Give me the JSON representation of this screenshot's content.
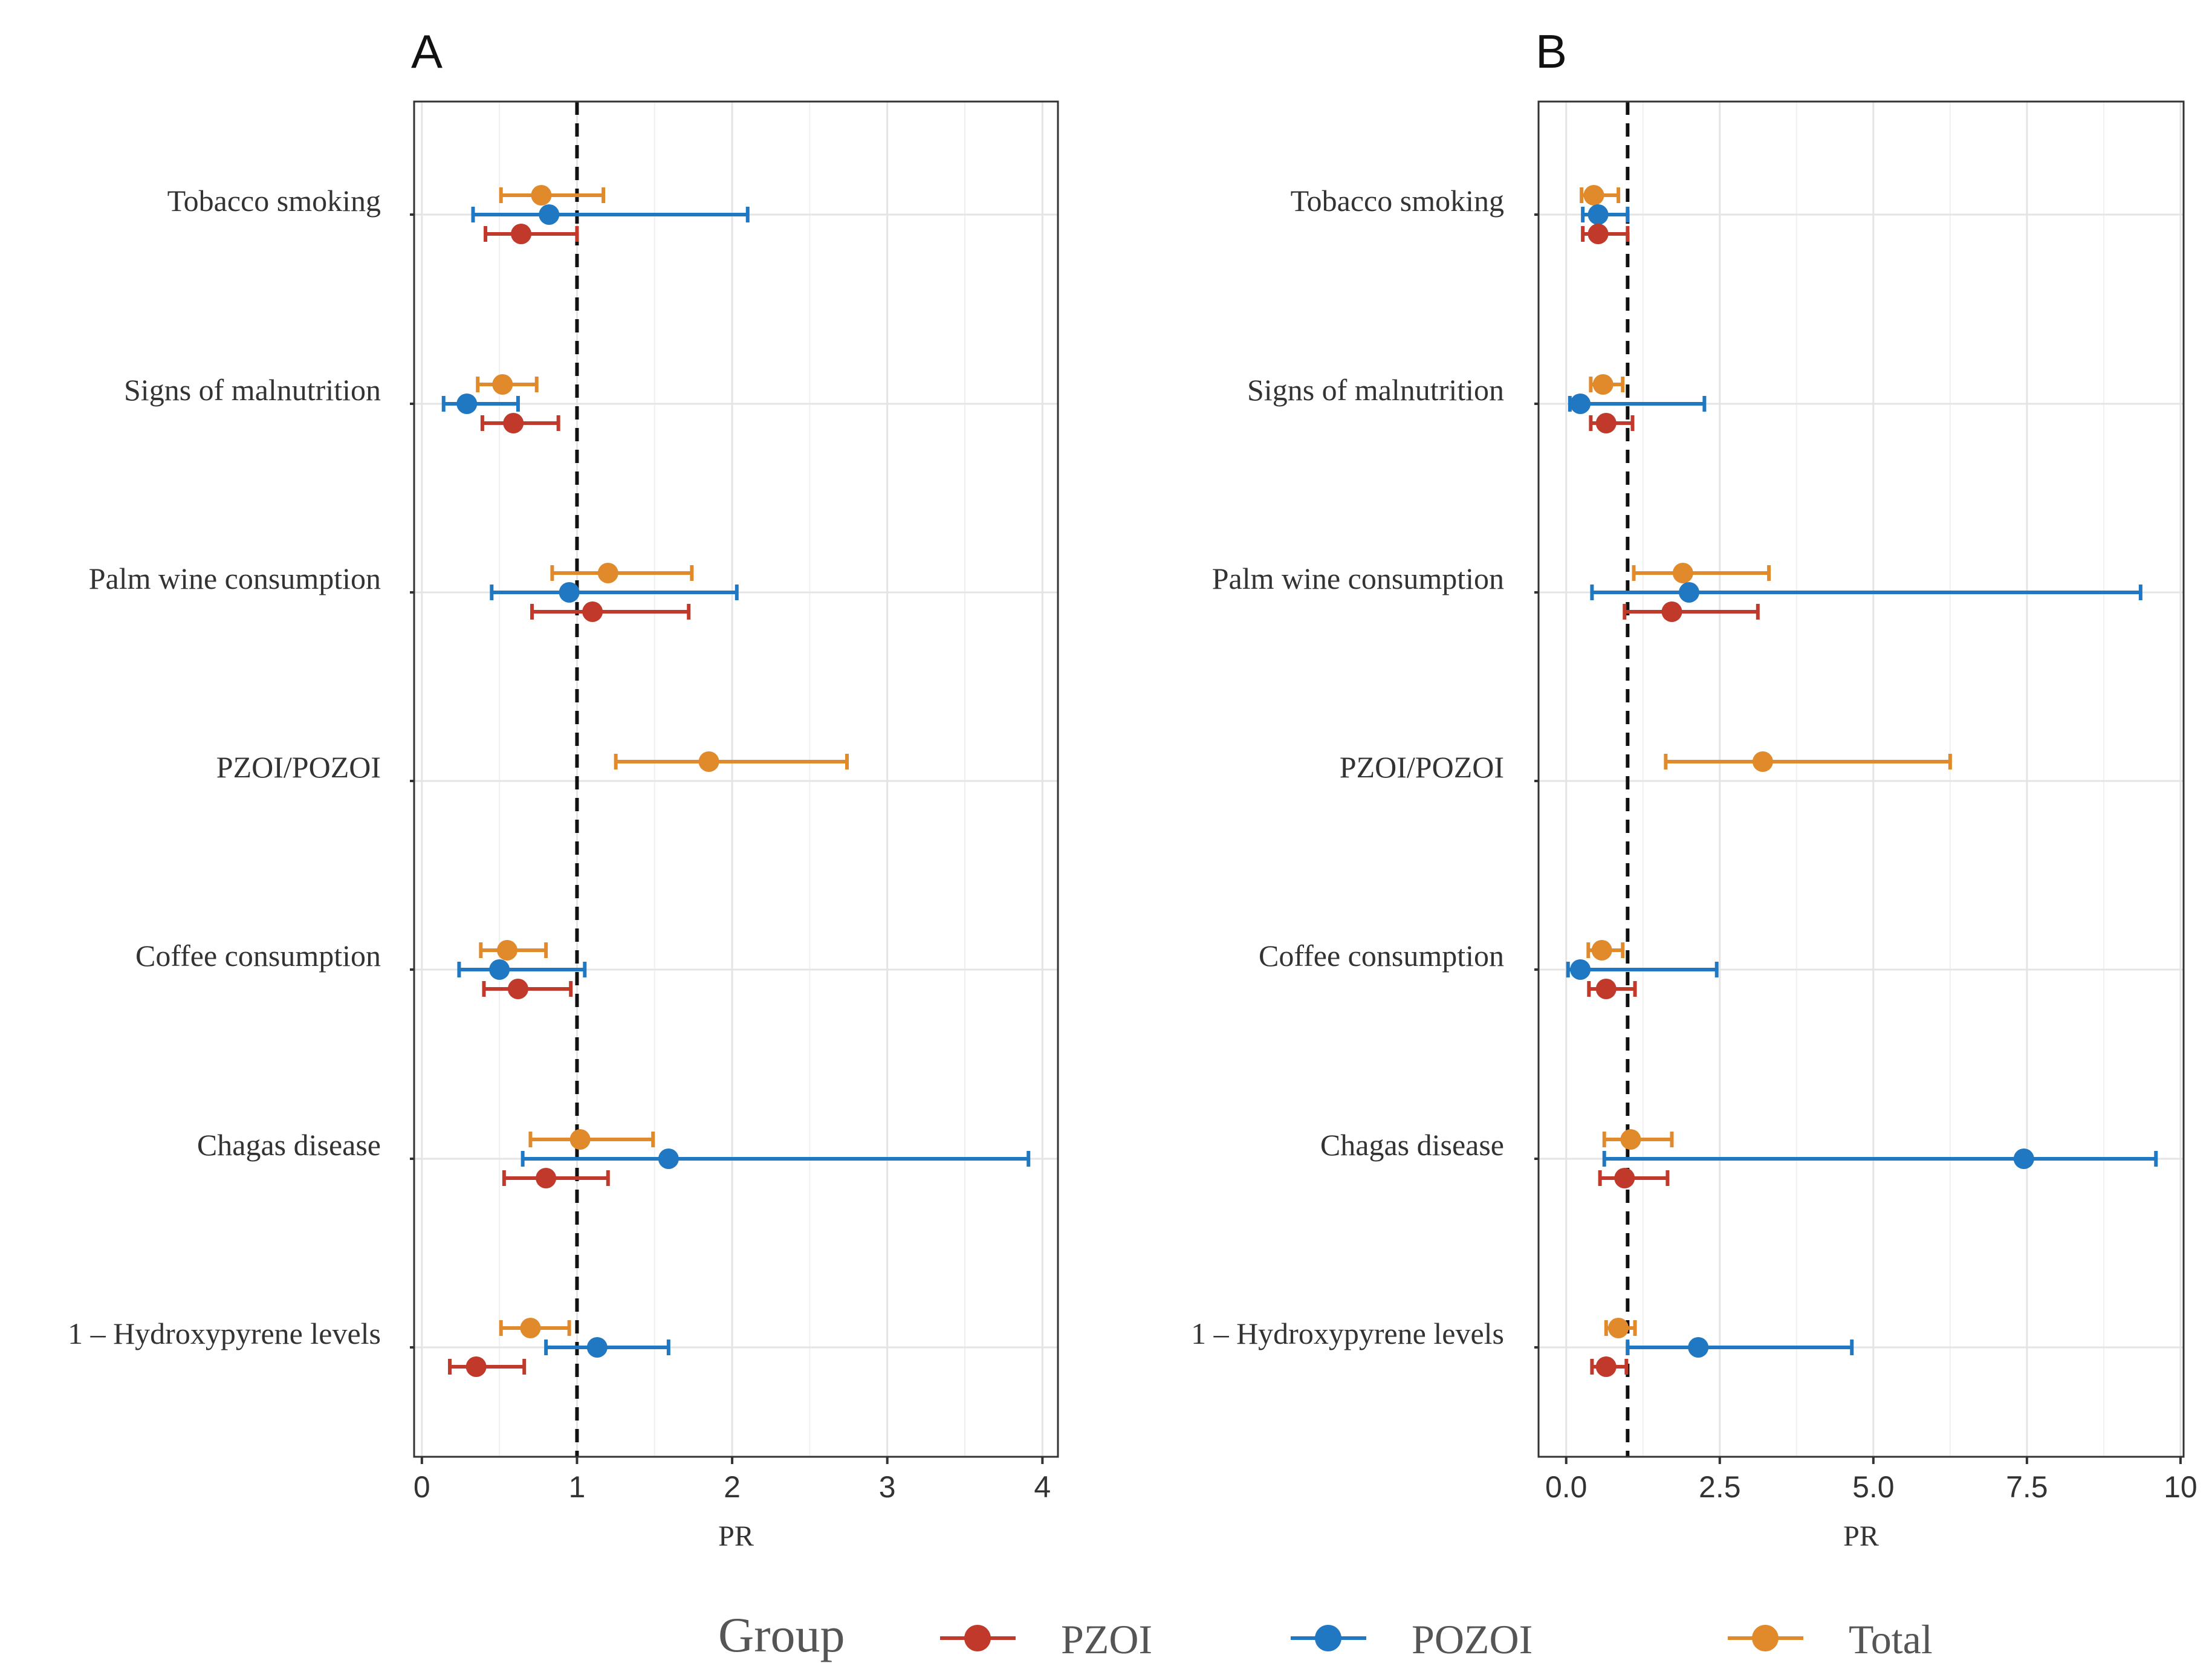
{
  "legend": {
    "title": "Group",
    "items": [
      {
        "name": "PZOI",
        "color": "#c0392b"
      },
      {
        "name": "POZOI",
        "color": "#1f78c1"
      },
      {
        "name": "Total",
        "color": "#e08a2c"
      }
    ]
  },
  "chart_data": [
    {
      "type": "forest",
      "panel": "A",
      "xlabel": "PR",
      "xlim": [
        -0.05,
        4.1
      ],
      "xticks": [
        0,
        1,
        2,
        3,
        4
      ],
      "tick_labels": [
        "0",
        "1",
        "2",
        "3",
        "4"
      ],
      "reference_line": 1,
      "categories": [
        "Tobacco smoking",
        "Signs of malnutrition",
        "Palm wine consumption",
        "PZOI/POZOI",
        "Coffee consumption",
        "Chagas disease",
        "1 – Hydroxypyrene levels"
      ],
      "series": [
        {
          "name": "Total",
          "estimates": [
            {
              "category": "Tobacco smoking",
              "pr": 0.77,
              "lo": 0.51,
              "hi": 1.17
            },
            {
              "category": "Signs of malnutrition",
              "pr": 0.52,
              "lo": 0.36,
              "hi": 0.74
            },
            {
              "category": "Palm wine consumption",
              "pr": 1.2,
              "lo": 0.84,
              "hi": 1.74
            },
            {
              "category": "PZOI/POZOI",
              "pr": 1.85,
              "lo": 1.25,
              "hi": 2.74
            },
            {
              "category": "Coffee consumption",
              "pr": 0.55,
              "lo": 0.38,
              "hi": 0.8
            },
            {
              "category": "Chagas disease",
              "pr": 1.02,
              "lo": 0.7,
              "hi": 1.49
            },
            {
              "category": "1 – Hydroxypyrene levels",
              "pr": 0.7,
              "lo": 0.51,
              "hi": 0.95
            }
          ]
        },
        {
          "name": "POZOI",
          "estimates": [
            {
              "category": "Tobacco smoking",
              "pr": 0.82,
              "lo": 0.33,
              "hi": 2.1
            },
            {
              "category": "Signs of malnutrition",
              "pr": 0.29,
              "lo": 0.14,
              "hi": 0.62
            },
            {
              "category": "Palm wine consumption",
              "pr": 0.95,
              "lo": 0.45,
              "hi": 2.03
            },
            {
              "category": "Coffee consumption",
              "pr": 0.5,
              "lo": 0.24,
              "hi": 1.05
            },
            {
              "category": "Chagas disease",
              "pr": 1.59,
              "lo": 0.65,
              "hi": 3.91
            },
            {
              "category": "1 – Hydroxypyrene levels",
              "pr": 1.13,
              "lo": 0.8,
              "hi": 1.59
            }
          ]
        },
        {
          "name": "PZOI",
          "estimates": [
            {
              "category": "Tobacco smoking",
              "pr": 0.64,
              "lo": 0.41,
              "hi": 1.0
            },
            {
              "category": "Signs of malnutrition",
              "pr": 0.59,
              "lo": 0.39,
              "hi": 0.88
            },
            {
              "category": "Palm wine consumption",
              "pr": 1.1,
              "lo": 0.71,
              "hi": 1.72
            },
            {
              "category": "Coffee consumption",
              "pr": 0.62,
              "lo": 0.4,
              "hi": 0.96
            },
            {
              "category": "Chagas disease",
              "pr": 0.8,
              "lo": 0.53,
              "hi": 1.2
            },
            {
              "category": "1 – Hydroxypyrene levels",
              "pr": 0.35,
              "lo": 0.18,
              "hi": 0.66
            }
          ]
        }
      ]
    },
    {
      "type": "forest",
      "panel": "B",
      "xlabel": "PR",
      "xlim": [
        -0.45,
        10.05
      ],
      "xticks": [
        0,
        2.5,
        5,
        7.5,
        10
      ],
      "tick_labels": [
        "0.0",
        "2.5",
        "5.0",
        "7.5",
        "10"
      ],
      "reference_line": 1,
      "categories": [
        "Tobacco smoking",
        "Signs of malnutrition",
        "Palm wine consumption",
        "PZOI/POZOI",
        "Coffee consumption",
        "Chagas disease",
        "1 – Hydroxypyrene levels"
      ],
      "series": [
        {
          "name": "Total",
          "estimates": [
            {
              "category": "Tobacco smoking",
              "pr": 0.45,
              "lo": 0.25,
              "hi": 0.85
            },
            {
              "category": "Signs of malnutrition",
              "pr": 0.6,
              "lo": 0.4,
              "hi": 0.92
            },
            {
              "category": "Palm wine consumption",
              "pr": 1.9,
              "lo": 1.1,
              "hi": 3.3
            },
            {
              "category": "PZOI/POZOI",
              "pr": 3.2,
              "lo": 1.62,
              "hi": 6.25
            },
            {
              "category": "Coffee consumption",
              "pr": 0.58,
              "lo": 0.36,
              "hi": 0.92
            },
            {
              "category": "Chagas disease",
              "pr": 1.05,
              "lo": 0.62,
              "hi": 1.72
            },
            {
              "category": "1 – Hydroxypyrene levels",
              "pr": 0.85,
              "lo": 0.65,
              "hi": 1.12
            }
          ]
        },
        {
          "name": "POZOI",
          "estimates": [
            {
              "category": "Tobacco smoking",
              "pr": 0.52,
              "lo": 0.27,
              "hi": 1.0
            },
            {
              "category": "Signs of malnutrition",
              "pr": 0.23,
              "lo": 0.06,
              "hi": 2.25
            },
            {
              "category": "Palm wine consumption",
              "pr": 2.0,
              "lo": 0.42,
              "hi": 9.35
            },
            {
              "category": "Coffee consumption",
              "pr": 0.23,
              "lo": 0.03,
              "hi": 2.45
            },
            {
              "category": "Chagas disease",
              "pr": 7.45,
              "lo": 0.62,
              "hi": 9.6
            },
            {
              "category": "1 – Hydroxypyrene levels",
              "pr": 2.15,
              "lo": 1.0,
              "hi": 4.65
            }
          ]
        },
        {
          "name": "PZOI",
          "estimates": [
            {
              "category": "Tobacco smoking",
              "pr": 0.52,
              "lo": 0.27,
              "hi": 1.0
            },
            {
              "category": "Signs of malnutrition",
              "pr": 0.65,
              "lo": 0.4,
              "hi": 1.08
            },
            {
              "category": "Palm wine consumption",
              "pr": 1.72,
              "lo": 0.95,
              "hi": 3.12
            },
            {
              "category": "Coffee consumption",
              "pr": 0.65,
              "lo": 0.37,
              "hi": 1.12
            },
            {
              "category": "Chagas disease",
              "pr": 0.95,
              "lo": 0.55,
              "hi": 1.65
            },
            {
              "category": "1 – Hydroxypyrene levels",
              "pr": 0.65,
              "lo": 0.42,
              "hi": 0.98
            }
          ]
        }
      ]
    }
  ]
}
